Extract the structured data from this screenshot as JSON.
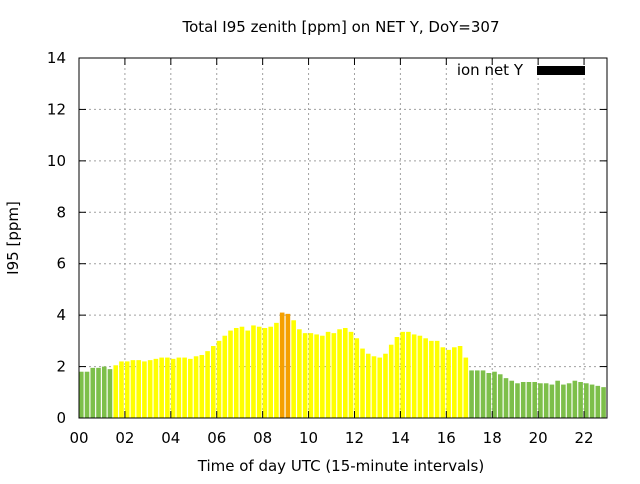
{
  "chart_data": {
    "type": "bar",
    "title": "Total I95 zenith [ppm] on NET Y, DoY=307",
    "xlabel": "Time of day UTC (15-minute intervals)",
    "ylabel": "I95 [ppm]",
    "xlim": [
      0,
      23
    ],
    "ylim": [
      0,
      14
    ],
    "x_ticks": [
      "00",
      "02",
      "04",
      "06",
      "08",
      "10",
      "12",
      "14",
      "16",
      "18",
      "20",
      "22"
    ],
    "y_ticks": [
      "0",
      "2",
      "4",
      "6",
      "8",
      "10",
      "12",
      "14"
    ],
    "grid": true,
    "legend": {
      "position": "top-right",
      "entries": [
        {
          "label": "ion net Y",
          "color": "#000000"
        }
      ]
    },
    "colors": {
      "green": "#7dbf4a",
      "yellow": "#ffff00",
      "orange": "#f5a000"
    },
    "bars": [
      {
        "t": 0.0,
        "v": 1.8,
        "c": "green"
      },
      {
        "t": 0.25,
        "v": 1.8,
        "c": "green"
      },
      {
        "t": 0.5,
        "v": 1.95,
        "c": "green"
      },
      {
        "t": 0.75,
        "v": 1.95,
        "c": "green"
      },
      {
        "t": 1.0,
        "v": 2.0,
        "c": "green"
      },
      {
        "t": 1.25,
        "v": 1.9,
        "c": "green"
      },
      {
        "t": 1.5,
        "v": 2.05,
        "c": "yellow"
      },
      {
        "t": 1.75,
        "v": 2.2,
        "c": "yellow"
      },
      {
        "t": 2.0,
        "v": 2.2,
        "c": "yellow"
      },
      {
        "t": 2.25,
        "v": 2.25,
        "c": "yellow"
      },
      {
        "t": 2.5,
        "v": 2.25,
        "c": "yellow"
      },
      {
        "t": 2.75,
        "v": 2.2,
        "c": "yellow"
      },
      {
        "t": 3.0,
        "v": 2.25,
        "c": "yellow"
      },
      {
        "t": 3.25,
        "v": 2.3,
        "c": "yellow"
      },
      {
        "t": 3.5,
        "v": 2.35,
        "c": "yellow"
      },
      {
        "t": 3.75,
        "v": 2.35,
        "c": "yellow"
      },
      {
        "t": 4.0,
        "v": 2.3,
        "c": "yellow"
      },
      {
        "t": 4.25,
        "v": 2.35,
        "c": "yellow"
      },
      {
        "t": 4.5,
        "v": 2.35,
        "c": "yellow"
      },
      {
        "t": 4.75,
        "v": 2.3,
        "c": "yellow"
      },
      {
        "t": 5.0,
        "v": 2.4,
        "c": "yellow"
      },
      {
        "t": 5.25,
        "v": 2.45,
        "c": "yellow"
      },
      {
        "t": 5.5,
        "v": 2.6,
        "c": "yellow"
      },
      {
        "t": 5.75,
        "v": 2.8,
        "c": "yellow"
      },
      {
        "t": 6.0,
        "v": 3.0,
        "c": "yellow"
      },
      {
        "t": 6.25,
        "v": 3.2,
        "c": "yellow"
      },
      {
        "t": 6.5,
        "v": 3.4,
        "c": "yellow"
      },
      {
        "t": 6.75,
        "v": 3.5,
        "c": "yellow"
      },
      {
        "t": 7.0,
        "v": 3.55,
        "c": "yellow"
      },
      {
        "t": 7.25,
        "v": 3.4,
        "c": "yellow"
      },
      {
        "t": 7.5,
        "v": 3.6,
        "c": "yellow"
      },
      {
        "t": 7.75,
        "v": 3.55,
        "c": "yellow"
      },
      {
        "t": 8.0,
        "v": 3.5,
        "c": "yellow"
      },
      {
        "t": 8.25,
        "v": 3.55,
        "c": "yellow"
      },
      {
        "t": 8.5,
        "v": 3.7,
        "c": "yellow"
      },
      {
        "t": 8.75,
        "v": 4.1,
        "c": "orange"
      },
      {
        "t": 9.0,
        "v": 4.05,
        "c": "orange"
      },
      {
        "t": 9.25,
        "v": 3.8,
        "c": "yellow"
      },
      {
        "t": 9.5,
        "v": 3.45,
        "c": "yellow"
      },
      {
        "t": 9.75,
        "v": 3.3,
        "c": "yellow"
      },
      {
        "t": 10.0,
        "v": 3.3,
        "c": "yellow"
      },
      {
        "t": 10.25,
        "v": 3.25,
        "c": "yellow"
      },
      {
        "t": 10.5,
        "v": 3.2,
        "c": "yellow"
      },
      {
        "t": 10.75,
        "v": 3.35,
        "c": "yellow"
      },
      {
        "t": 11.0,
        "v": 3.3,
        "c": "yellow"
      },
      {
        "t": 11.25,
        "v": 3.45,
        "c": "yellow"
      },
      {
        "t": 11.5,
        "v": 3.5,
        "c": "yellow"
      },
      {
        "t": 11.75,
        "v": 3.35,
        "c": "yellow"
      },
      {
        "t": 12.0,
        "v": 3.1,
        "c": "yellow"
      },
      {
        "t": 12.25,
        "v": 2.7,
        "c": "yellow"
      },
      {
        "t": 12.5,
        "v": 2.5,
        "c": "yellow"
      },
      {
        "t": 12.75,
        "v": 2.4,
        "c": "yellow"
      },
      {
        "t": 13.0,
        "v": 2.35,
        "c": "yellow"
      },
      {
        "t": 13.25,
        "v": 2.5,
        "c": "yellow"
      },
      {
        "t": 13.5,
        "v": 2.85,
        "c": "yellow"
      },
      {
        "t": 13.75,
        "v": 3.15,
        "c": "yellow"
      },
      {
        "t": 14.0,
        "v": 3.35,
        "c": "yellow"
      },
      {
        "t": 14.25,
        "v": 3.35,
        "c": "yellow"
      },
      {
        "t": 14.5,
        "v": 3.25,
        "c": "yellow"
      },
      {
        "t": 14.75,
        "v": 3.2,
        "c": "yellow"
      },
      {
        "t": 15.0,
        "v": 3.1,
        "c": "yellow"
      },
      {
        "t": 15.25,
        "v": 3.0,
        "c": "yellow"
      },
      {
        "t": 15.5,
        "v": 3.0,
        "c": "yellow"
      },
      {
        "t": 15.75,
        "v": 2.75,
        "c": "yellow"
      },
      {
        "t": 16.0,
        "v": 2.65,
        "c": "yellow"
      },
      {
        "t": 16.25,
        "v": 2.75,
        "c": "yellow"
      },
      {
        "t": 16.5,
        "v": 2.8,
        "c": "yellow"
      },
      {
        "t": 16.75,
        "v": 2.35,
        "c": "yellow"
      },
      {
        "t": 17.0,
        "v": 1.85,
        "c": "green"
      },
      {
        "t": 17.25,
        "v": 1.85,
        "c": "green"
      },
      {
        "t": 17.5,
        "v": 1.85,
        "c": "green"
      },
      {
        "t": 17.75,
        "v": 1.75,
        "c": "green"
      },
      {
        "t": 18.0,
        "v": 1.8,
        "c": "green"
      },
      {
        "t": 18.25,
        "v": 1.7,
        "c": "green"
      },
      {
        "t": 18.5,
        "v": 1.55,
        "c": "green"
      },
      {
        "t": 18.75,
        "v": 1.45,
        "c": "green"
      },
      {
        "t": 19.0,
        "v": 1.35,
        "c": "green"
      },
      {
        "t": 19.25,
        "v": 1.4,
        "c": "green"
      },
      {
        "t": 19.5,
        "v": 1.4,
        "c": "green"
      },
      {
        "t": 19.75,
        "v": 1.4,
        "c": "green"
      },
      {
        "t": 20.0,
        "v": 1.35,
        "c": "green"
      },
      {
        "t": 20.25,
        "v": 1.35,
        "c": "green"
      },
      {
        "t": 20.5,
        "v": 1.3,
        "c": "green"
      },
      {
        "t": 20.75,
        "v": 1.45,
        "c": "green"
      },
      {
        "t": 21.0,
        "v": 1.3,
        "c": "green"
      },
      {
        "t": 21.25,
        "v": 1.35,
        "c": "green"
      },
      {
        "t": 21.5,
        "v": 1.45,
        "c": "green"
      },
      {
        "t": 21.75,
        "v": 1.4,
        "c": "green"
      },
      {
        "t": 22.0,
        "v": 1.35,
        "c": "green"
      },
      {
        "t": 22.25,
        "v": 1.3,
        "c": "green"
      },
      {
        "t": 22.5,
        "v": 1.25,
        "c": "green"
      },
      {
        "t": 22.75,
        "v": 1.2,
        "c": "green"
      }
    ]
  }
}
